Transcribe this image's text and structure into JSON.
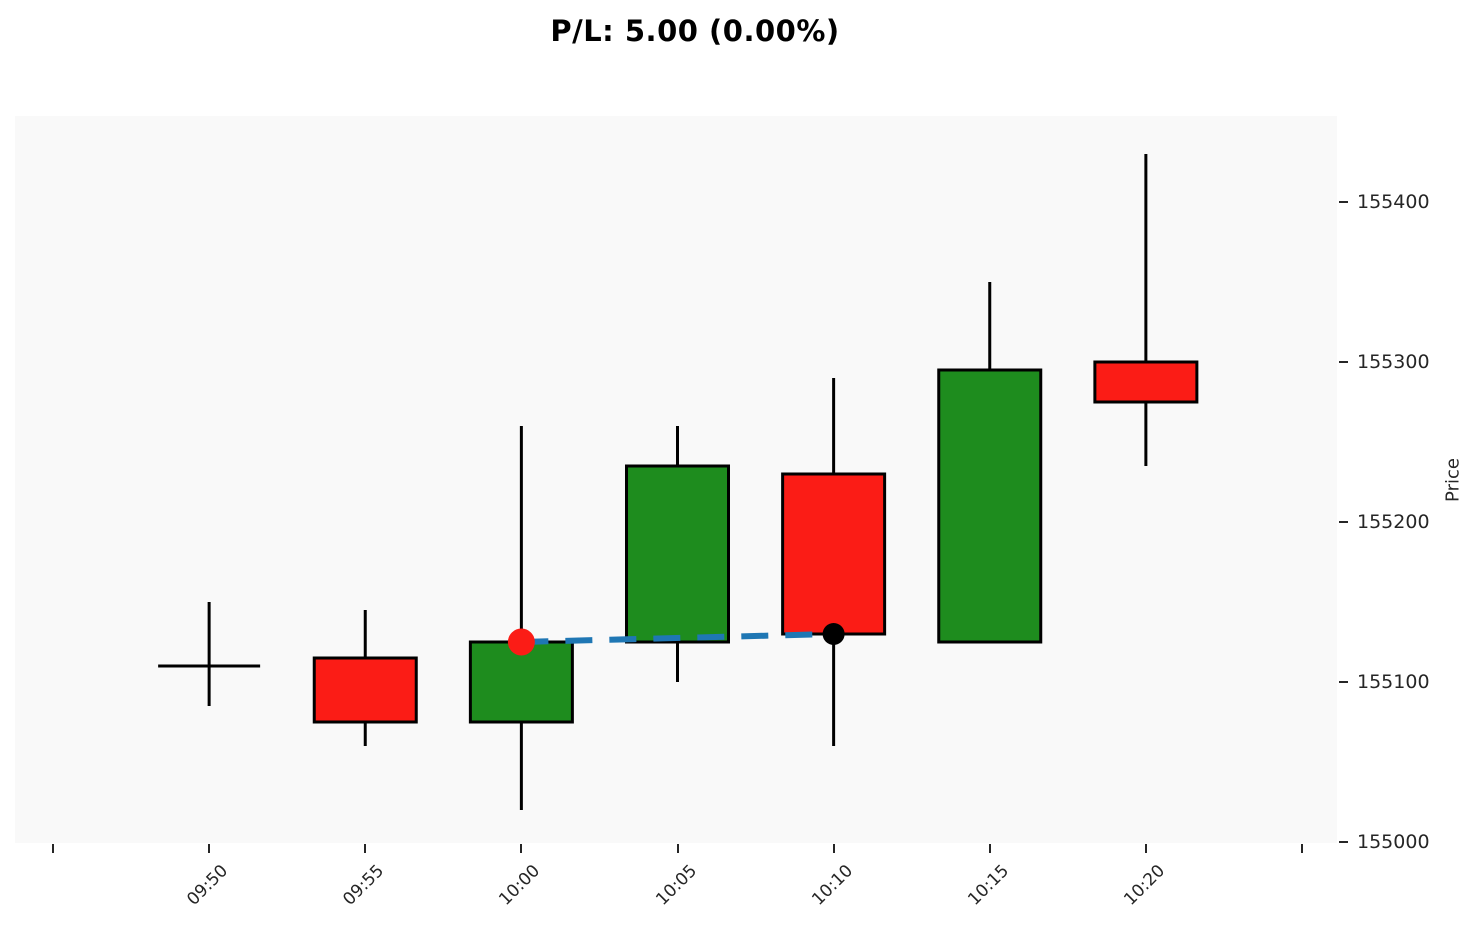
{
  "title": "P/L: 5.00 (0.00%)",
  "chart_data": {
    "type": "candlestick",
    "title": "P/L: 5.00 (0.00%)",
    "ylabel": "Price",
    "grid": false,
    "legend": null,
    "plot_bg_color": "#f9f9f9",
    "ylim": [
      154999,
      155454
    ],
    "y_ticks": [
      155000,
      155100,
      155200,
      155300,
      155400
    ],
    "x_tick_labels": [
      "",
      "09:50",
      "09:55",
      "10:00",
      "10:05",
      "10:10",
      "10:15",
      "10:20",
      ""
    ],
    "categories": [
      "09:50",
      "09:55",
      "10:00",
      "10:05",
      "10:10",
      "10:15",
      "10:20"
    ],
    "candles": [
      {
        "time": "09:50",
        "open": 155110,
        "high": 155150,
        "low": 155085,
        "close": 155110
      },
      {
        "time": "09:55",
        "open": 155115,
        "high": 155145,
        "low": 155060,
        "close": 155075
      },
      {
        "time": "10:00",
        "open": 155075,
        "high": 155260,
        "low": 155020,
        "close": 155125
      },
      {
        "time": "10:05",
        "open": 155125,
        "high": 155260,
        "low": 155100,
        "close": 155235
      },
      {
        "time": "10:10",
        "open": 155230,
        "high": 155290,
        "low": 155060,
        "close": 155130
      },
      {
        "time": "10:15",
        "open": 155125,
        "high": 155350,
        "low": 155125,
        "close": 155295
      },
      {
        "time": "10:20",
        "open": 155300,
        "high": 155430,
        "low": 155235,
        "close": 155275
      }
    ],
    "colors": {
      "up": "#1e8c1e",
      "down": "#fb1c16",
      "wick": "#000000",
      "body_edge": "#000000",
      "trade_line": "#1f77b4",
      "entry_marker": "#fb1c16",
      "exit_marker": "#000000"
    },
    "trade_line": {
      "style": "dashed",
      "entry": {
        "time": "10:00",
        "price": 155125
      },
      "exit": {
        "time": "10:10",
        "price": 155130
      }
    }
  }
}
